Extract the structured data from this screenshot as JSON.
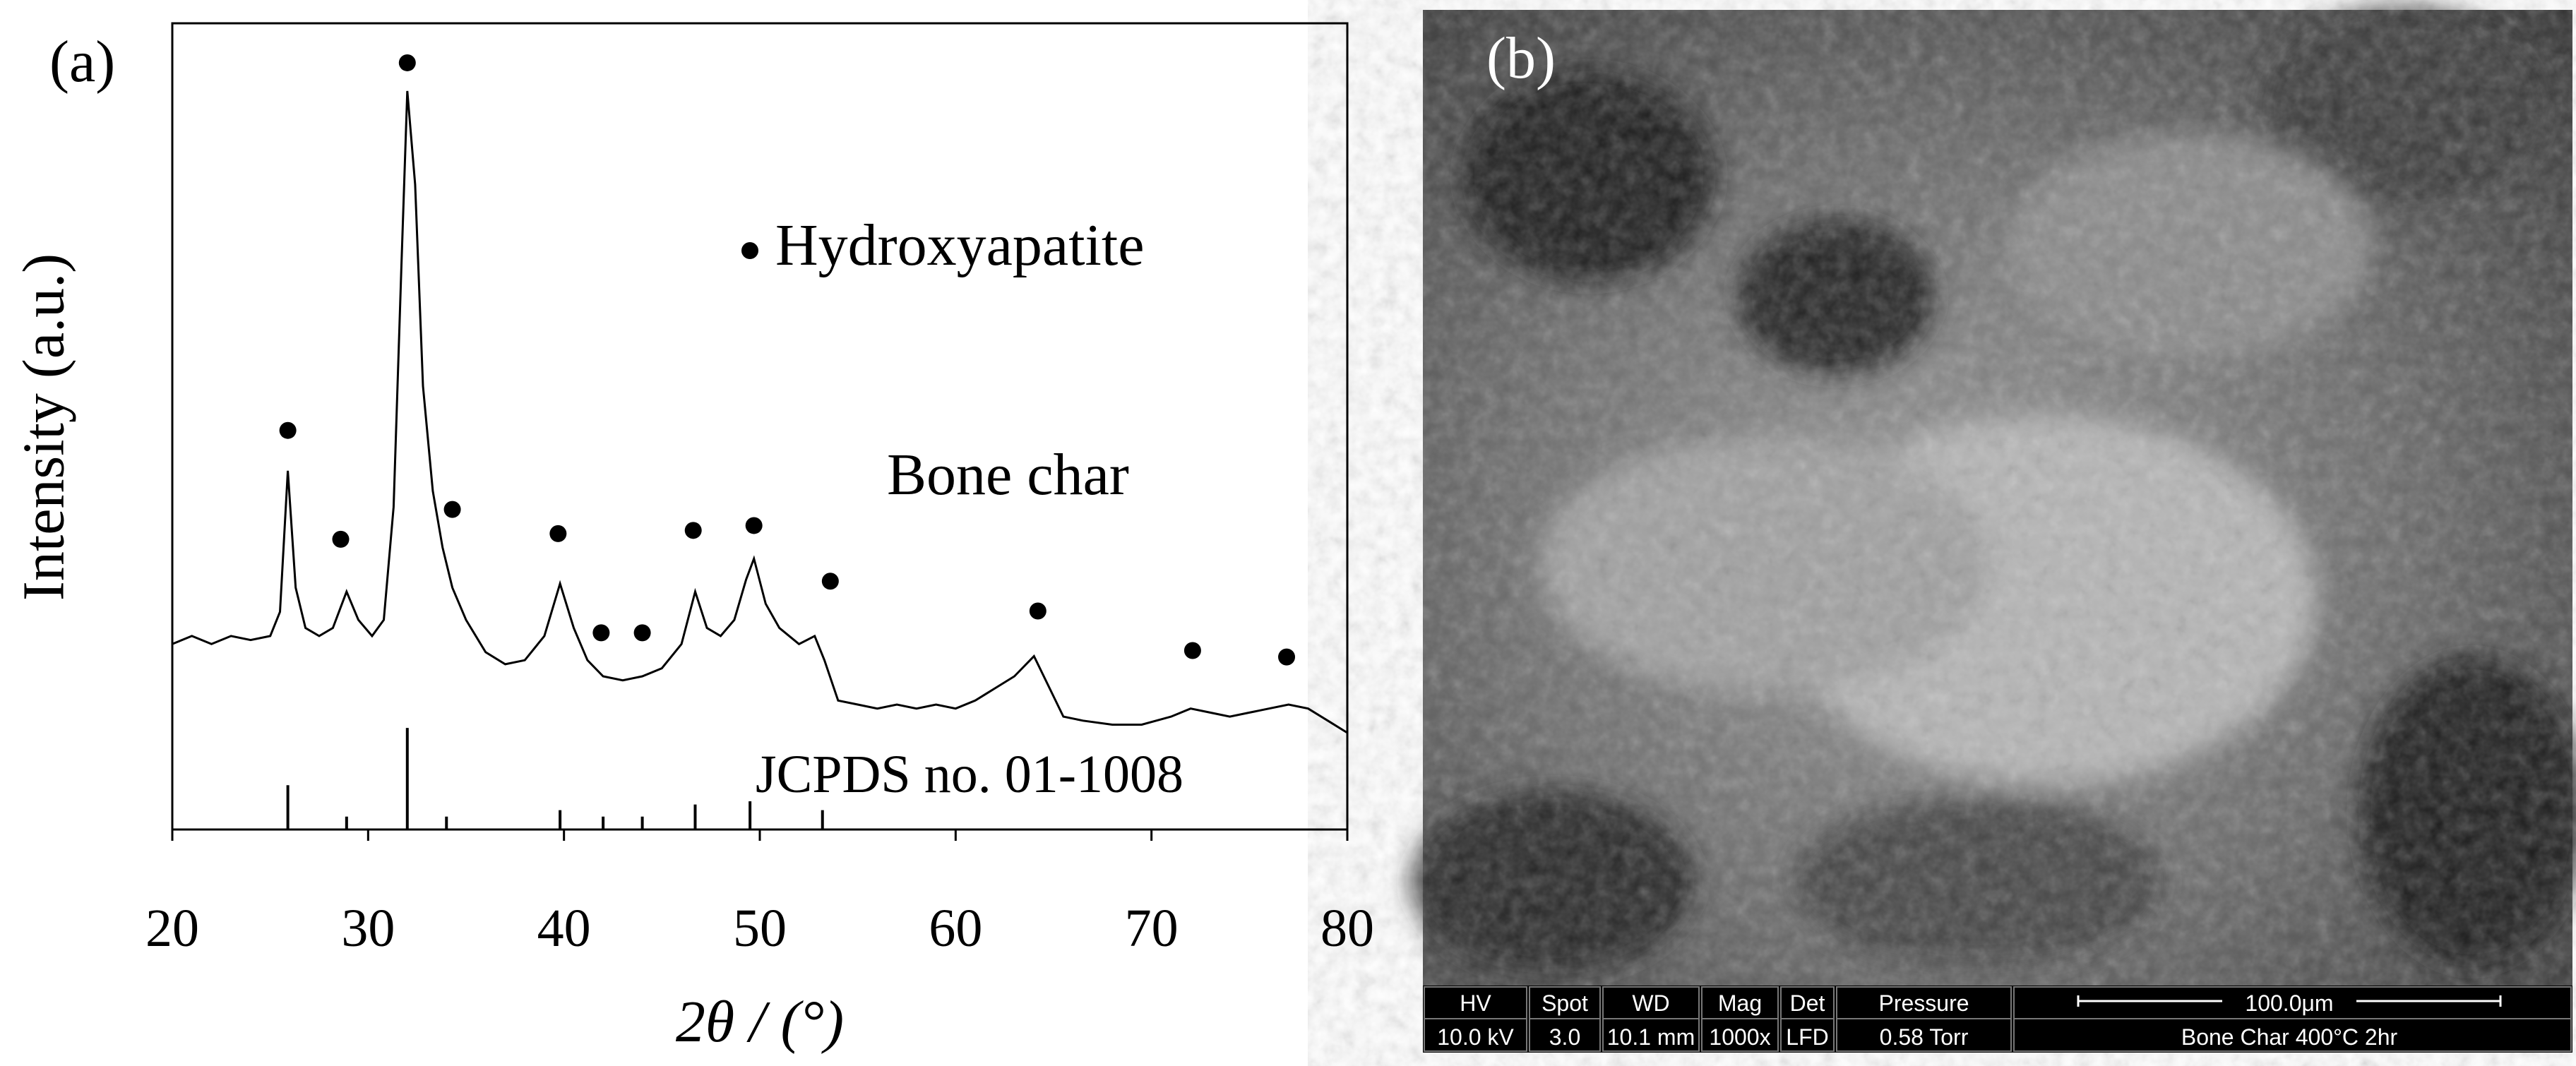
{
  "chart_data": {
    "type": "line",
    "panel_label": "(a)",
    "xlabel": "2θ / (°)",
    "ylabel": "Intensity (a.u.)",
    "xlim": [
      20,
      80
    ],
    "xticks": [
      20,
      30,
      40,
      50,
      60,
      70,
      80
    ],
    "ylim": [
      0,
      100
    ],
    "color": "#000000",
    "x": [
      20,
      21,
      22,
      23,
      24,
      25,
      25.5,
      25.9,
      26.3,
      26.8,
      27.5,
      28.2,
      28.9,
      29.5,
      30.2,
      30.8,
      31.3,
      31.7,
      32.0,
      32.4,
      32.8,
      33.3,
      33.8,
      34.3,
      35,
      36,
      37,
      38,
      39,
      39.8,
      40.5,
      41.2,
      42,
      43,
      44,
      45,
      46,
      46.7,
      47.3,
      48,
      48.7,
      49.3,
      49.7,
      50.3,
      51,
      52,
      52.8,
      53.3,
      54,
      55,
      56,
      57,
      58,
      59,
      60,
      61,
      62,
      63,
      64,
      64.7,
      65.5,
      66.5,
      68,
      69.5,
      71,
      72,
      73,
      74,
      75,
      76,
      77,
      78,
      79,
      80
    ],
    "values": [
      23,
      24,
      23,
      24,
      23.5,
      24,
      27,
      44.5,
      30,
      25,
      24,
      25,
      29.5,
      26,
      24,
      26,
      40,
      70,
      91.6,
      80,
      55,
      42,
      35,
      30,
      26,
      22,
      20.5,
      21,
      24,
      30.5,
      25,
      21,
      19,
      18.5,
      19,
      20,
      23,
      29.5,
      25,
      24,
      26,
      31,
      33.6,
      28,
      25,
      23,
      24,
      21,
      16,
      15.5,
      15,
      15.5,
      15,
      15.5,
      15,
      16,
      17.5,
      19,
      21.5,
      18,
      14,
      13.5,
      13,
      13,
      14,
      15,
      14.5,
      14,
      14.5,
      15,
      15.5,
      15,
      13.5,
      12
    ],
    "peaks": {
      "name": "Hydroxyapatite",
      "x": [
        25.9,
        28.6,
        32,
        34.3,
        39.7,
        41.9,
        44,
        46.6,
        49.7,
        53.6,
        64.2,
        72.1,
        76.9
      ],
      "values": [
        49.5,
        36,
        95.1,
        39.7,
        36.7,
        24.4,
        24.4,
        37.1,
        37.7,
        30.8,
        27.1,
        22.2,
        21.4
      ]
    },
    "sample_label": "Bone char",
    "reference": {
      "name": "JCPDS no. 01-1008",
      "x": [
        25.9,
        28.9,
        32,
        34,
        39.8,
        42,
        44,
        46.7,
        49.5,
        53.2
      ],
      "values": [
        5.5,
        1.6,
        12.6,
        1.6,
        2.4,
        1.6,
        1.6,
        3.1,
        3.5,
        2.4
      ]
    }
  },
  "sem_image": {
    "panel_label": "(b)",
    "info_headers": [
      "HV",
      "Spot",
      "WD",
      "Mag",
      "Det",
      "Pressure"
    ],
    "info_values": [
      "10.0 kV",
      "3.0",
      "10.1 mm",
      "1000x",
      "LFD",
      "0.58  Torr"
    ],
    "scale_bar": "100.0μm",
    "caption": "Bone Char 400°C 2hr"
  }
}
